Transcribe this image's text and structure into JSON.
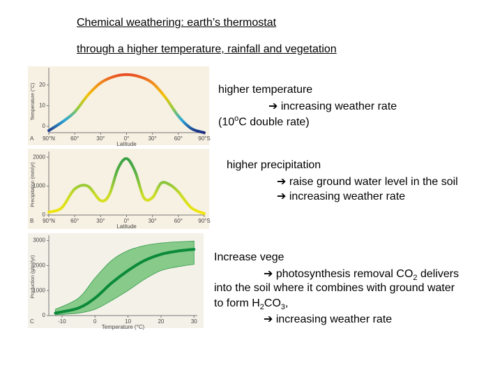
{
  "header": {
    "title": "Chemical weathering: earth’s thermostat",
    "subtitle": " through a higher temperature, rainfall and vegetation"
  },
  "blocks": [
    {
      "lines": [
        [
          "higher temperature"
        ],
        [
          "➔ increasing weather rate"
        ],
        [
          "(10",
          "o",
          "C double rate)"
        ]
      ]
    },
    {
      "lines": [
        [
          "higher precipitation"
        ],
        [
          "➔ raise ground water level in the soil"
        ],
        [
          "➔ increasing weather rate"
        ]
      ]
    },
    {
      "lines": [
        [
          "Increase vege"
        ],
        [
          "➔ photosynthesis removal CO",
          "2",
          " delivers"
        ],
        [
          "into the soil where it combines with ground water"
        ],
        [
          "to form H",
          "2",
          "CO",
          "3",
          ","
        ],
        [
          "➔ increasing weather rate"
        ]
      ]
    }
  ],
  "chart_data": [
    {
      "type": "line",
      "panel": "A",
      "ylabel": "Temperature (°C)",
      "xlabel": "Latitude",
      "x": [
        -90,
        -75,
        -60,
        -45,
        -30,
        -15,
        0,
        15,
        30,
        45,
        60,
        75,
        90
      ],
      "series": [
        {
          "colors": [
            "#1b2a80",
            "#2aa7d9",
            "#9ccc3c",
            "#f4c20d",
            "#f08a1c",
            "#e5332a"
          ],
          "values": [
            -2,
            2,
            7,
            15,
            21,
            24,
            25,
            24,
            21,
            14,
            5,
            -1,
            -3
          ]
        }
      ],
      "xlim": [
        -90,
        90
      ],
      "xticks": [
        {
          "value": -90,
          "label": "90°N"
        },
        {
          "value": -60,
          "label": "60°"
        },
        {
          "value": -30,
          "label": "30°"
        },
        {
          "value": 0,
          "label": "0°"
        },
        {
          "value": 30,
          "label": "30°"
        },
        {
          "value": 60,
          "label": "60°"
        },
        {
          "value": 90,
          "label": "90°S"
        }
      ],
      "ylim": [
        -3,
        27
      ],
      "yticks": [
        0,
        10,
        20
      ]
    },
    {
      "type": "line",
      "panel": "B",
      "ylabel": "Precipitation (mm/yr)",
      "xlabel": "Latitude",
      "x": [
        -90,
        -75,
        -60,
        -45,
        -30,
        -20,
        -10,
        0,
        10,
        20,
        30,
        40,
        50,
        60,
        75,
        90
      ],
      "series": [
        {
          "colors": [
            "#f6e60a",
            "#c9dc2a",
            "#5fb445",
            "#2e9b43"
          ],
          "values": [
            100,
            250,
            900,
            1000,
            500,
            700,
            1600,
            1950,
            1500,
            600,
            600,
            1100,
            1050,
            800,
            250,
            50
          ]
        }
      ],
      "xlim": [
        -90,
        90
      ],
      "xticks": [
        {
          "value": -90,
          "label": "90°N"
        },
        {
          "value": -60,
          "label": "60°"
        },
        {
          "value": -30,
          "label": "30°"
        },
        {
          "value": 0,
          "label": "0°"
        },
        {
          "value": 30,
          "label": "30°"
        },
        {
          "value": 60,
          "label": "60°"
        },
        {
          "value": 90,
          "label": "90°S"
        }
      ],
      "ylim": [
        0,
        2100
      ],
      "yticks": [
        0,
        1000,
        2000
      ]
    },
    {
      "type": "line",
      "panel": "C",
      "ylabel": "Production (g/m²/yr)",
      "xlabel": "Temperature (°C)",
      "x": [
        -12,
        -5,
        0,
        5,
        10,
        15,
        20,
        25,
        30
      ],
      "series": [
        {
          "colors": [
            "#0b8a3a"
          ],
          "values": [
            100,
            300,
            700,
            1300,
            1800,
            2200,
            2450,
            2580,
            2650
          ]
        }
      ],
      "band": {
        "color": "#6cc070",
        "low": [
          30,
          100,
          250,
          600,
          1000,
          1450,
          1800,
          1950,
          2050
        ],
        "high": [
          250,
          700,
          1500,
          2200,
          2600,
          2800,
          2900,
          2950,
          2980
        ]
      },
      "xlim": [
        -14,
        31
      ],
      "xticks": [
        -10,
        0,
        10,
        20,
        30
      ],
      "ylim": [
        0,
        3100
      ],
      "yticks": [
        0,
        1000,
        2000,
        3000
      ]
    }
  ]
}
